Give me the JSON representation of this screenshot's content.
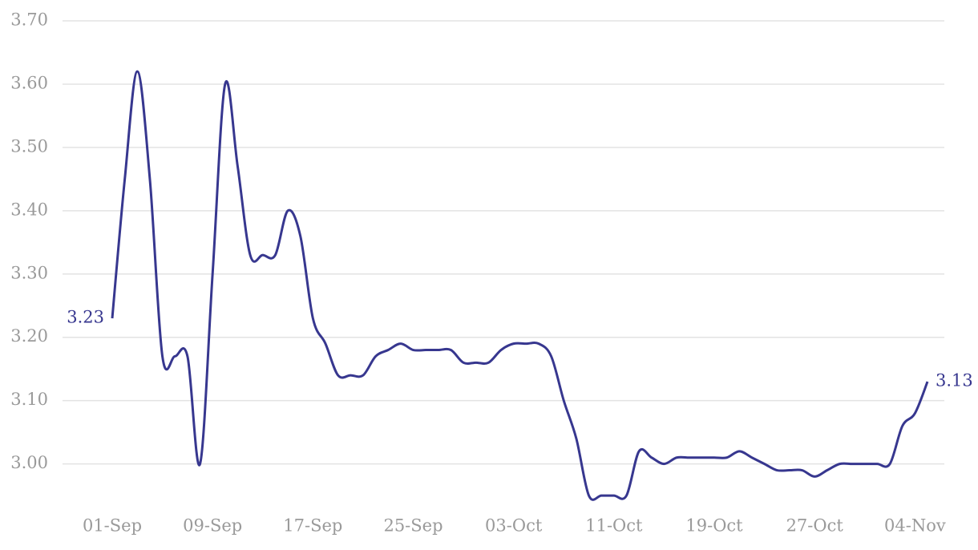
{
  "chart_data": {
    "type": "line",
    "categories": [
      "01-Sep",
      null,
      null,
      null,
      null,
      null,
      null,
      null,
      "09-Sep",
      null,
      null,
      null,
      null,
      null,
      null,
      null,
      "17-Sep",
      null,
      null,
      null,
      null,
      null,
      null,
      null,
      "25-Sep",
      null,
      null,
      null,
      null,
      null,
      null,
      null,
      "03-Oct",
      null,
      null,
      null,
      null,
      null,
      null,
      null,
      "11-Oct",
      null,
      null,
      null,
      null,
      null,
      null,
      null,
      "19-Oct",
      null,
      null,
      null,
      null,
      null,
      null,
      null,
      "27-Oct",
      null,
      null,
      null,
      null,
      null,
      null,
      null,
      "04-Nov",
      null
    ],
    "series": [
      {
        "name": null,
        "color": "#37378f",
        "values": [
          3.23,
          3.45,
          3.62,
          3.45,
          3.17,
          3.17,
          3.17,
          3.0,
          3.3,
          3.6,
          3.47,
          3.33,
          3.33,
          3.33,
          3.4,
          3.36,
          3.23,
          3.19,
          3.14,
          3.14,
          3.14,
          3.17,
          3.18,
          3.19,
          3.18,
          3.18,
          3.18,
          3.18,
          3.16,
          3.16,
          3.16,
          3.18,
          3.19,
          3.19,
          3.19,
          3.17,
          3.1,
          3.04,
          2.95,
          2.95,
          2.95,
          2.95,
          3.02,
          3.01,
          3.0,
          3.01,
          3.01,
          3.01,
          3.01,
          3.01,
          3.02,
          3.01,
          3.0,
          2.99,
          2.99,
          2.99,
          2.98,
          2.99,
          3.0,
          3.0,
          3.0,
          3.0,
          3.0,
          3.06,
          3.08,
          3.13
        ],
        "value_labels": [
          "3.23",
          null,
          null,
          null,
          null,
          null,
          null,
          null,
          null,
          null,
          null,
          null,
          null,
          null,
          null,
          null,
          null,
          null,
          null,
          null,
          null,
          null,
          null,
          null,
          null,
          null,
          null,
          null,
          null,
          null,
          null,
          null,
          null,
          null,
          null,
          null,
          null,
          null,
          null,
          null,
          null,
          null,
          null,
          null,
          null,
          null,
          null,
          null,
          null,
          null,
          null,
          null,
          null,
          null,
          null,
          null,
          null,
          null,
          null,
          null,
          null,
          null,
          null,
          null,
          null,
          "3.13"
        ]
      }
    ],
    "ylim": [
      2.94,
      3.7
    ],
    "yticks": [
      {
        "value": 3,
        "label": "3.00"
      },
      {
        "value": 3.1,
        "label": "3.10"
      },
      {
        "value": 3.2,
        "label": "3.20"
      },
      {
        "value": 3.3,
        "label": "3.30"
      },
      {
        "value": 3.4,
        "label": "3.40"
      },
      {
        "value": 3.5,
        "label": "3.50"
      },
      {
        "value": 3.6,
        "label": "3.60"
      },
      {
        "value": 3.7,
        "label": "3.70"
      }
    ],
    "grid": true
  }
}
